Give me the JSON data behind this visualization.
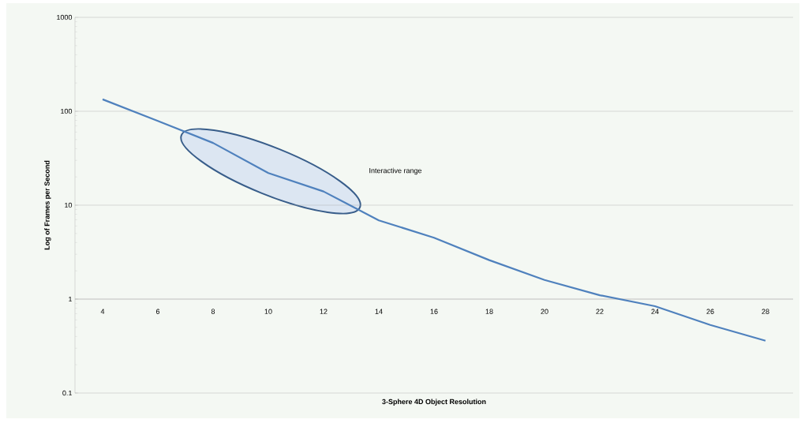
{
  "chart_data": {
    "type": "line",
    "xlabel": "3-Sphere 4D Object Resolution",
    "ylabel": "Log of Frames per Second",
    "categories": [
      "4",
      "6",
      "8",
      "10",
      "12",
      "14",
      "16",
      "18",
      "20",
      "22",
      "24",
      "26",
      "28"
    ],
    "series": [
      {
        "color": "#4f81bd",
        "values": [
          134,
          79,
          46,
          22,
          14,
          6.9,
          4.5,
          2.6,
          1.6,
          1.1,
          0.84,
          0.53,
          0.36
        ]
      }
    ],
    "ylim": [
      0.1,
      1000
    ],
    "yticks": [
      0.1,
      1,
      10,
      100,
      1000
    ],
    "log": "y",
    "grid": "y",
    "annotations": [
      "Interactive range"
    ]
  }
}
